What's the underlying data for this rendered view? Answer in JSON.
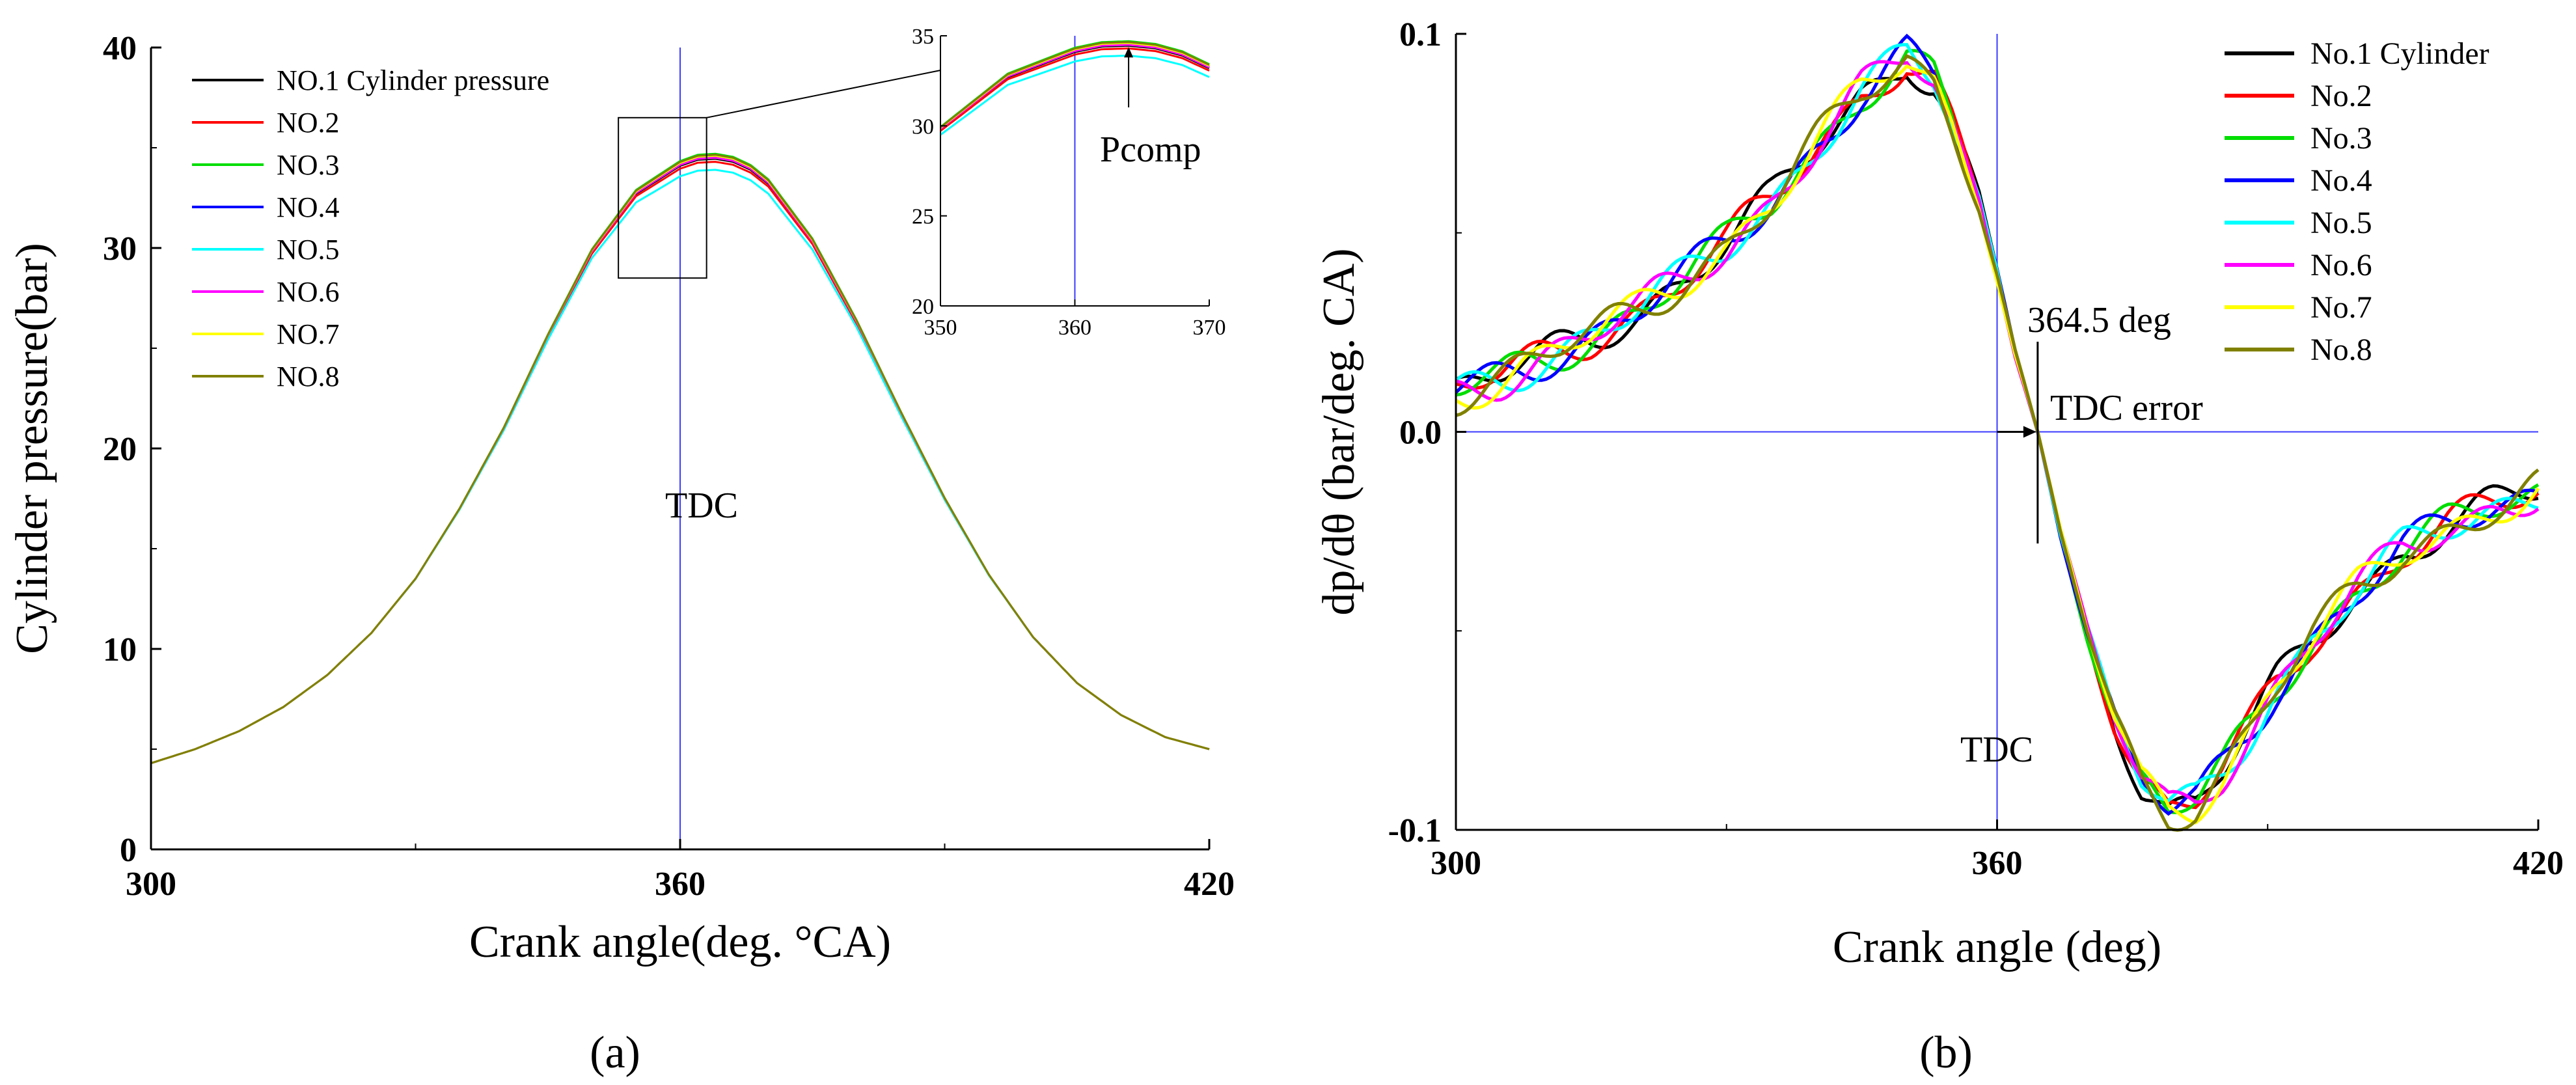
{
  "chart_data": [
    {
      "type": "line",
      "panel_label": "(a)",
      "xlabel": "Crank angle(deg. °CA)",
      "ylabel": "Cylinder pressure(bar)",
      "xlim": [
        300,
        420
      ],
      "ylim": [
        0,
        40
      ],
      "xticks": [
        "300",
        "360",
        "420"
      ],
      "yticks": [
        "0",
        "10",
        "20",
        "30",
        "40"
      ],
      "legend_position": "top-left",
      "annotations": {
        "tdc": "TDC",
        "pcomp": "Pcomp"
      },
      "inset": {
        "xlim": [
          350,
          370
        ],
        "ylim": [
          20,
          35
        ],
        "xticks": [
          "350",
          "360",
          "370"
        ],
        "yticks": [
          "20",
          "25",
          "30",
          "35"
        ],
        "zoom_box": {
          "x": [
            353,
            363
          ],
          "y": [
            28.5,
            36.5
          ]
        }
      },
      "tdc_x": 360,
      "x": [
        300,
        305,
        310,
        315,
        320,
        325,
        330,
        335,
        340,
        345,
        350,
        355,
        360,
        362,
        364,
        366,
        368,
        370,
        375,
        380,
        385,
        390,
        395,
        400,
        405,
        410,
        415,
        420
      ],
      "base_curve": [
        4.3,
        5.0,
        5.9,
        7.1,
        8.7,
        10.8,
        13.5,
        17.0,
        21.0,
        25.6,
        29.8,
        32.7,
        34.1,
        34.4,
        34.45,
        34.3,
        33.9,
        33.2,
        30.3,
        26.3,
        21.8,
        17.5,
        13.7,
        10.6,
        8.3,
        6.7,
        5.6,
        5.0
      ],
      "series": [
        {
          "name": "NO.1 Cylinder pressure",
          "color": "#000000",
          "peak_offset": 0.0
        },
        {
          "name": "NO.2",
          "color": "#ff0000",
          "peak_offset": -0.15
        },
        {
          "name": "NO.3",
          "color": "#00dd00",
          "peak_offset": 0.25
        },
        {
          "name": "NO.4",
          "color": "#0000ff",
          "peak_offset": 0.1
        },
        {
          "name": "NO.5",
          "color": "#00ffff",
          "peak_offset": -0.55
        },
        {
          "name": "NO.6",
          "color": "#ff00ff",
          "peak_offset": 0.05
        },
        {
          "name": "NO.7",
          "color": "#ffff00",
          "peak_offset": 0.15
        },
        {
          "name": "NO.8",
          "color": "#808000",
          "peak_offset": 0.2
        }
      ]
    },
    {
      "type": "line",
      "panel_label": "(b)",
      "xlabel": "Crank angle (deg)",
      "ylabel": "dp/dθ  (bar/deg. CA)",
      "xlim": [
        300,
        420
      ],
      "ylim": [
        -0.1,
        0.1
      ],
      "xticks": [
        "300",
        "360",
        "420"
      ],
      "yticks": [
        "-0.1",
        "0.0",
        "0.1"
      ],
      "legend_position": "top-right",
      "annotations": {
        "tdc": "TDC",
        "angle": "364.5 deg",
        "error": "TDC error"
      },
      "tdc_x": 360,
      "zero_cross_x": 364.5,
      "x": [
        300,
        305,
        310,
        315,
        320,
        325,
        330,
        335,
        340,
        345,
        350,
        353,
        355,
        358,
        360,
        362,
        364.5,
        367,
        370,
        373,
        376,
        379,
        382,
        385,
        388,
        391,
        395,
        400,
        405,
        410,
        415,
        420
      ],
      "base_curve": [
        0.01,
        0.014,
        0.019,
        0.024,
        0.03,
        0.038,
        0.047,
        0.058,
        0.072,
        0.085,
        0.094,
        0.088,
        0.077,
        0.058,
        0.04,
        0.02,
        0.0,
        -0.025,
        -0.05,
        -0.072,
        -0.088,
        -0.095,
        -0.093,
        -0.085,
        -0.075,
        -0.064,
        -0.052,
        -0.04,
        -0.03,
        -0.024,
        -0.019,
        -0.015
      ],
      "series": [
        {
          "name": "No.1 Cylinder",
          "color": "#000000"
        },
        {
          "name": "No.2",
          "color": "#ff0000"
        },
        {
          "name": "No.3",
          "color": "#00dd00"
        },
        {
          "name": "No.4",
          "color": "#0000ff"
        },
        {
          "name": "No.5",
          "color": "#00ffff"
        },
        {
          "name": "No.6",
          "color": "#ff00ff"
        },
        {
          "name": "No.7",
          "color": "#ffff00"
        },
        {
          "name": "No.8",
          "color": "#808000"
        }
      ]
    }
  ]
}
